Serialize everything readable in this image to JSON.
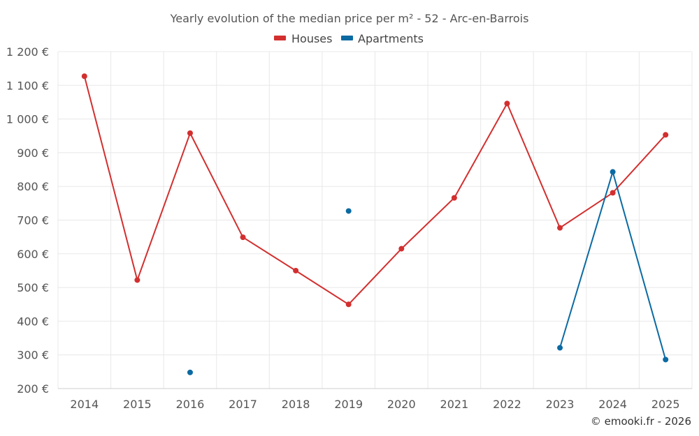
{
  "chart_data": {
    "type": "line",
    "title": "Yearly evolution of the median price per m² - 52 - Arc-en-Barrois",
    "xlabel": "",
    "ylabel": "",
    "categories": [
      "2014",
      "2015",
      "2016",
      "2017",
      "2018",
      "2019",
      "2020",
      "2021",
      "2022",
      "2023",
      "2024",
      "2025"
    ],
    "ylim": [
      200,
      1200
    ],
    "yticks": [
      200,
      300,
      400,
      500,
      600,
      700,
      800,
      900,
      1000,
      1100,
      1200
    ],
    "ytick_labels": [
      "200 €",
      "300 €",
      "400 €",
      "500 €",
      "600 €",
      "700 €",
      "800 €",
      "900 €",
      "1 000 €",
      "1 100 €",
      "1 200 €"
    ],
    "grid": true,
    "legend_position": "top-center",
    "series": [
      {
        "name": "Houses",
        "color": "#d32f2f",
        "values": [
          1127,
          522,
          958,
          649,
          550,
          450,
          615,
          766,
          1046,
          677,
          781,
          953
        ]
      },
      {
        "name": "Apartments",
        "color": "#0b6aa2",
        "values": [
          null,
          null,
          248,
          null,
          null,
          727,
          null,
          null,
          null,
          321,
          843,
          286
        ]
      }
    ],
    "credit": "© emooki.fr - 2026"
  }
}
